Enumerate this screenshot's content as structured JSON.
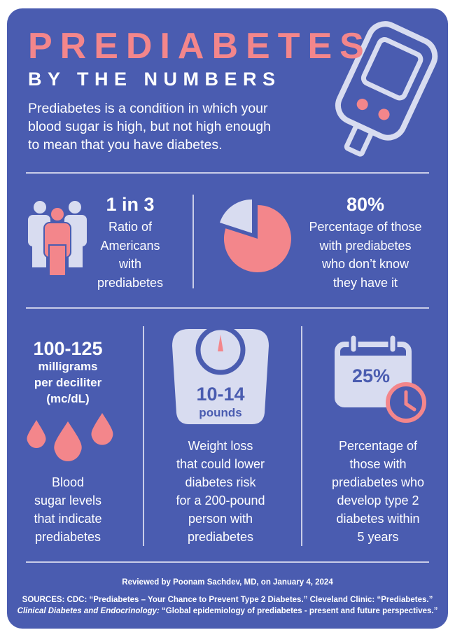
{
  "header": {
    "title": "PREDIABETES",
    "subtitle": "BY THE NUMBERS",
    "intro": [
      "Prediabetes is a condition in which your",
      "blood sugar is high, but not high enough",
      "to mean that you have diabetes."
    ]
  },
  "stats": [
    {
      "value": "1 in 3",
      "description": [
        "Ratio of",
        "Americans",
        "with",
        "prediabetes"
      ]
    },
    {
      "value": "80%",
      "description": [
        "Percentage of those",
        "with prediabetes",
        "who don’t know",
        "they have it"
      ]
    },
    {
      "value": "100-125",
      "unit": [
        "milligrams",
        "per deciliter",
        "(mc/dL)"
      ],
      "description": [
        "Blood",
        "sugar levels",
        "that indicate",
        "prediabetes"
      ]
    },
    {
      "value": "10-14",
      "unit": [
        "pounds"
      ],
      "description": [
        "Weight loss",
        "that could lower",
        "diabetes  risk",
        "for a 200-pound",
        "person with",
        "prediabetes"
      ]
    },
    {
      "value": "25%",
      "description": [
        "Percentage of",
        "those with",
        "prediabetes who",
        "develop type 2",
        "diabetes within",
        "5 years"
      ]
    }
  ],
  "footer": {
    "reviewed": "Reviewed by  Poonam Sachdev, MD,  on January 4, 2024",
    "sources_line1": "SOURCES:  CDC: “Prediabetes – Your Chance to Prevent Type 2 Diabetes.”  Cleveland Clinic: “Prediabetes.”",
    "sources_line2_italic": "Clinical Diabetes and Endocrinology:",
    "sources_line2_rest": " “Global epidemiology of prediabetes - present and future perspectives.”"
  }
}
